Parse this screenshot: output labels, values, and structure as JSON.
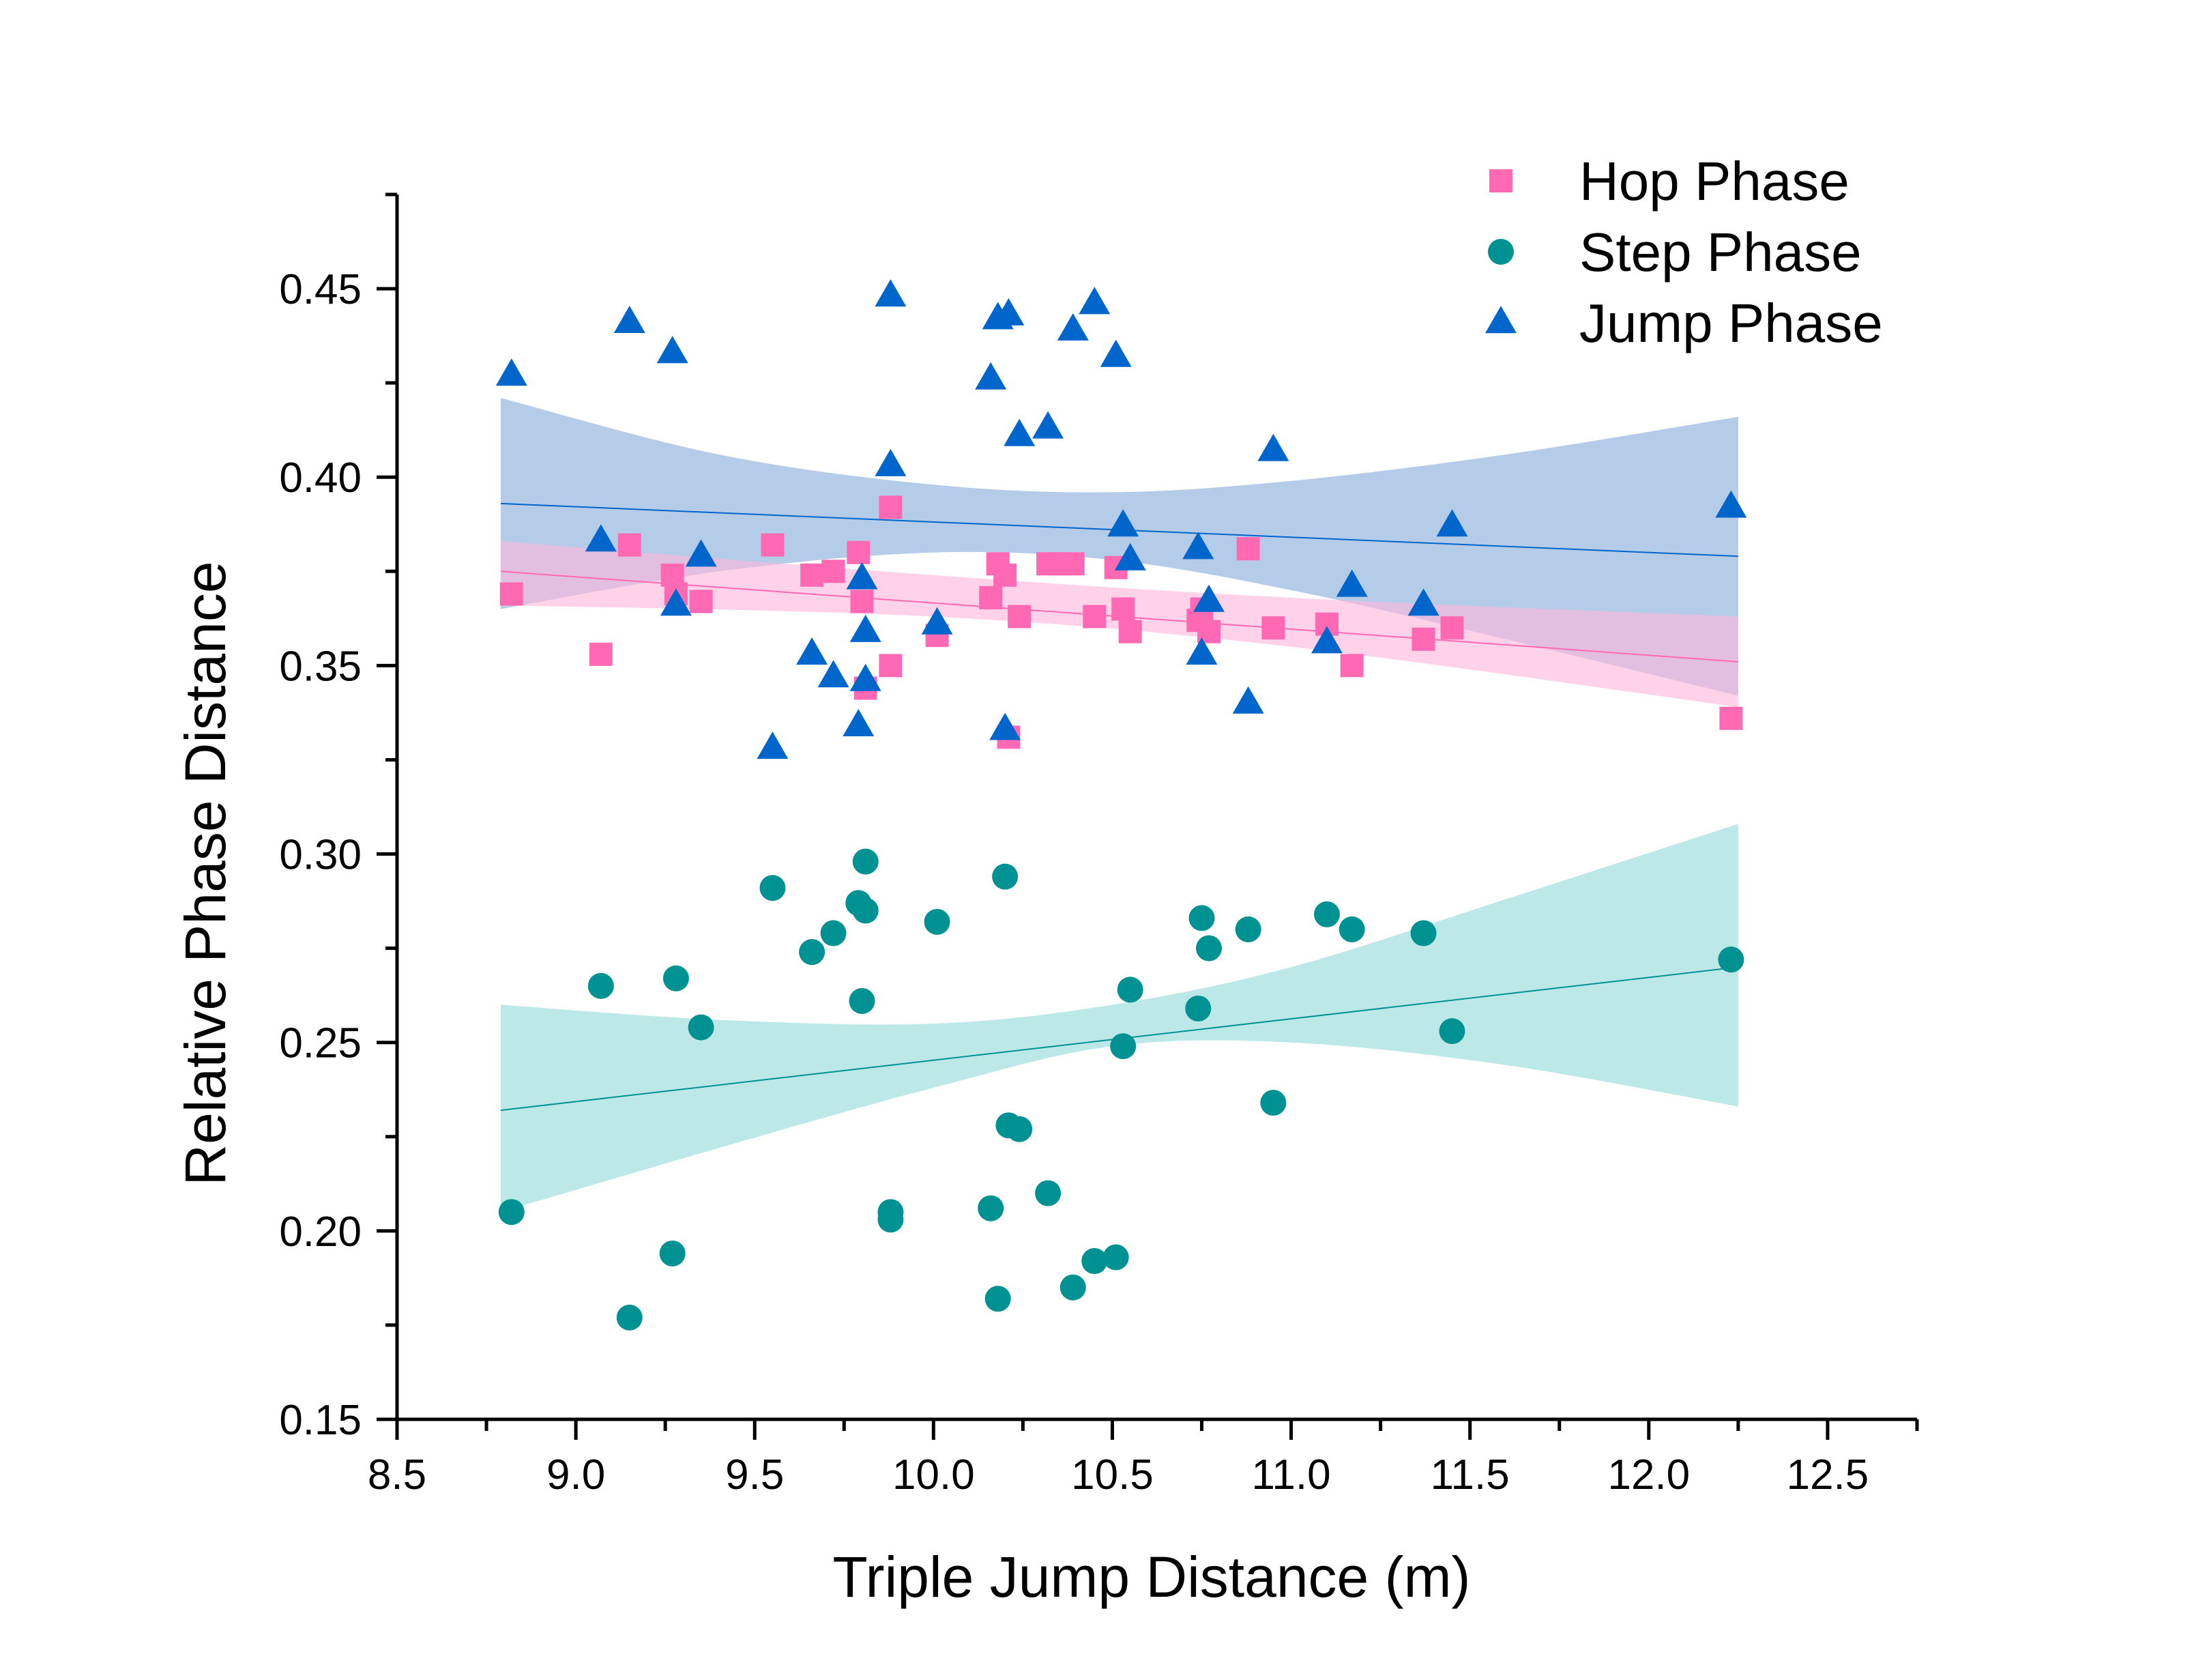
{
  "chart_data": {
    "type": "scatter",
    "title": "",
    "xlabel": "Triple Jump Distance (m)",
    "ylabel": "Relative Phase Distance",
    "xlim": [
      8.5,
      12.75
    ],
    "ylim": [
      0.15,
      0.475
    ],
    "x_ticks": [
      "8.5",
      "9.0",
      "9.5",
      "10.0",
      "10.5",
      "11.0",
      "11.5",
      "12.0",
      "12.5"
    ],
    "y_ticks": [
      "0.15",
      "0.20",
      "0.25",
      "0.30",
      "0.35",
      "0.40",
      "0.45"
    ],
    "grid": false,
    "legend_position": "top-right",
    "series": [
      {
        "name": "Hop Phase",
        "marker": "square",
        "color": "#FF69B4",
        "band_color": "#FFB6DD",
        "points": [
          [
            8.82,
            0.369
          ],
          [
            9.07,
            0.353
          ],
          [
            9.15,
            0.382
          ],
          [
            9.27,
            0.374
          ],
          [
            9.28,
            0.369
          ],
          [
            9.35,
            0.367
          ],
          [
            9.55,
            0.382
          ],
          [
            9.66,
            0.374
          ],
          [
            9.72,
            0.375
          ],
          [
            9.79,
            0.38
          ],
          [
            9.8,
            0.367
          ],
          [
            9.81,
            0.344
          ],
          [
            9.88,
            0.392
          ],
          [
            9.88,
            0.35
          ],
          [
            10.01,
            0.358
          ],
          [
            10.16,
            0.368
          ],
          [
            10.18,
            0.377
          ],
          [
            10.2,
            0.374
          ],
          [
            10.21,
            0.331
          ],
          [
            10.24,
            0.363
          ],
          [
            10.32,
            0.377
          ],
          [
            10.35,
            0.377
          ],
          [
            10.39,
            0.377
          ],
          [
            10.45,
            0.363
          ],
          [
            10.51,
            0.376
          ],
          [
            10.53,
            0.365
          ],
          [
            10.55,
            0.359
          ],
          [
            10.74,
            0.362
          ],
          [
            10.75,
            0.365
          ],
          [
            10.77,
            0.359
          ],
          [
            10.88,
            0.381
          ],
          [
            10.95,
            0.36
          ],
          [
            11.1,
            0.361
          ],
          [
            11.17,
            0.35
          ],
          [
            11.37,
            0.357
          ],
          [
            11.45,
            0.36
          ],
          [
            12.23,
            0.336
          ]
        ],
        "fit": [
          [
            8.79,
            0.375
          ],
          [
            12.25,
            0.351
          ]
        ],
        "band_upper": [
          [
            8.79,
            0.383
          ],
          [
            10.0,
            0.374
          ],
          [
            11.0,
            0.368
          ],
          [
            12.25,
            0.363
          ]
        ],
        "band_lower": [
          [
            8.79,
            0.366
          ],
          [
            10.0,
            0.363
          ],
          [
            11.0,
            0.355
          ],
          [
            12.25,
            0.339
          ]
        ]
      },
      {
        "name": "Step Phase",
        "marker": "circle",
        "color": "#009292",
        "band_color": "#B8E7E6",
        "points": [
          [
            8.82,
            0.205
          ],
          [
            9.07,
            0.265
          ],
          [
            9.15,
            0.177
          ],
          [
            9.27,
            0.194
          ],
          [
            9.28,
            0.267
          ],
          [
            9.35,
            0.254
          ],
          [
            9.55,
            0.291
          ],
          [
            9.66,
            0.274
          ],
          [
            9.72,
            0.279
          ],
          [
            9.79,
            0.287
          ],
          [
            9.8,
            0.261
          ],
          [
            9.81,
            0.298
          ],
          [
            9.81,
            0.285
          ],
          [
            9.88,
            0.205
          ],
          [
            9.88,
            0.203
          ],
          [
            10.01,
            0.282
          ],
          [
            10.16,
            0.206
          ],
          [
            10.18,
            0.182
          ],
          [
            10.2,
            0.294
          ],
          [
            10.21,
            0.228
          ],
          [
            10.24,
            0.227
          ],
          [
            10.32,
            0.21
          ],
          [
            10.39,
            0.185
          ],
          [
            10.45,
            0.192
          ],
          [
            10.51,
            0.193
          ],
          [
            10.53,
            0.249
          ],
          [
            10.55,
            0.264
          ],
          [
            10.74,
            0.259
          ],
          [
            10.75,
            0.283
          ],
          [
            10.77,
            0.275
          ],
          [
            10.88,
            0.28
          ],
          [
            10.95,
            0.234
          ],
          [
            11.1,
            0.284
          ],
          [
            11.17,
            0.28
          ],
          [
            11.37,
            0.279
          ],
          [
            11.45,
            0.253
          ],
          [
            12.23,
            0.272
          ]
        ],
        "fit": [
          [
            8.79,
            0.232
          ],
          [
            12.25,
            0.27
          ]
        ],
        "band_upper": [
          [
            8.79,
            0.26
          ],
          [
            9.4,
            0.256
          ],
          [
            10.0,
            0.255
          ],
          [
            10.5,
            0.26
          ],
          [
            11.0,
            0.27
          ],
          [
            11.6,
            0.288
          ],
          [
            12.25,
            0.308
          ]
        ],
        "band_lower": [
          [
            8.79,
            0.205
          ],
          [
            9.4,
            0.222
          ],
          [
            10.0,
            0.238
          ],
          [
            10.5,
            0.249
          ],
          [
            11.0,
            0.25
          ],
          [
            11.6,
            0.244
          ],
          [
            12.25,
            0.233
          ]
        ]
      },
      {
        "name": "Jump Phase",
        "marker": "triangle",
        "color": "#0066CC",
        "band_color": "#B0C9E6",
        "points": [
          [
            8.82,
            0.427
          ],
          [
            9.07,
            0.383
          ],
          [
            9.15,
            0.441
          ],
          [
            9.27,
            0.433
          ],
          [
            9.28,
            0.366
          ],
          [
            9.35,
            0.379
          ],
          [
            9.55,
            0.328
          ],
          [
            9.66,
            0.353
          ],
          [
            9.72,
            0.347
          ],
          [
            9.79,
            0.334
          ],
          [
            9.8,
            0.373
          ],
          [
            9.81,
            0.359
          ],
          [
            9.81,
            0.346
          ],
          [
            9.88,
            0.448
          ],
          [
            9.88,
            0.403
          ],
          [
            10.01,
            0.361
          ],
          [
            10.16,
            0.426
          ],
          [
            10.18,
            0.442
          ],
          [
            10.2,
            0.333
          ],
          [
            10.21,
            0.443
          ],
          [
            10.24,
            0.411
          ],
          [
            10.32,
            0.413
          ],
          [
            10.39,
            0.439
          ],
          [
            10.45,
            0.446
          ],
          [
            10.51,
            0.432
          ],
          [
            10.53,
            0.387
          ],
          [
            10.55,
            0.378
          ],
          [
            10.74,
            0.381
          ],
          [
            10.75,
            0.353
          ],
          [
            10.77,
            0.367
          ],
          [
            10.88,
            0.34
          ],
          [
            10.95,
            0.407
          ],
          [
            11.1,
            0.356
          ],
          [
            11.17,
            0.371
          ],
          [
            11.37,
            0.366
          ],
          [
            11.45,
            0.387
          ],
          [
            12.23,
            0.392
          ]
        ],
        "fit": [
          [
            8.79,
            0.393
          ],
          [
            12.25,
            0.379
          ]
        ],
        "band_upper": [
          [
            8.79,
            0.421
          ],
          [
            9.4,
            0.406
          ],
          [
            10.0,
            0.398
          ],
          [
            10.5,
            0.396
          ],
          [
            11.0,
            0.399
          ],
          [
            11.6,
            0.406
          ],
          [
            12.25,
            0.416
          ]
        ],
        "band_lower": [
          [
            8.79,
            0.365
          ],
          [
            9.4,
            0.375
          ],
          [
            10.0,
            0.38
          ],
          [
            10.5,
            0.378
          ],
          [
            11.0,
            0.37
          ],
          [
            11.6,
            0.357
          ],
          [
            12.25,
            0.342
          ]
        ]
      }
    ]
  }
}
